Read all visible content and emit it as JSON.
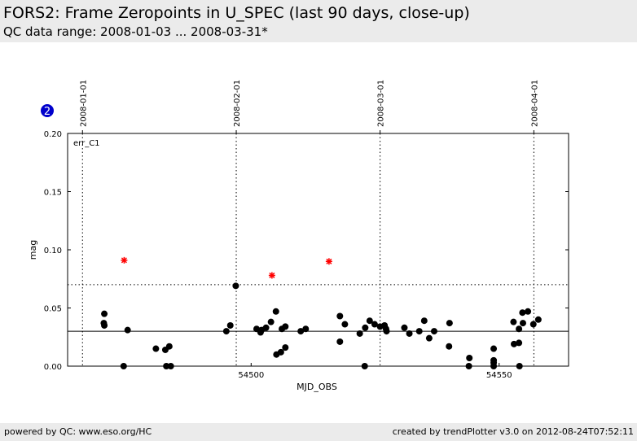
{
  "header": {
    "title": "FORS2: Frame Zeropoints in U_SPEC (last 90 days, close-up)",
    "subtitle": "QC data range: 2008-01-03 ... 2008-03-31*"
  },
  "badge": "2",
  "footer": {
    "left": "powered by QC: www.eso.org/HC",
    "right": "created by trendPlotter v3.0 on 2012-08-24T07:52:11"
  },
  "colors": {
    "points": "#000000",
    "outliers": "#ff0000",
    "badge": "#0000cc",
    "header_bg": "#ebebeb"
  },
  "chart_data": {
    "type": "scatter",
    "panel_label": "err_C1",
    "xlabel": "MJD_OBS",
    "ylabel": "mag",
    "xlim": [
      54463,
      54564
    ],
    "ylim": [
      0,
      0.2
    ],
    "x_ticks": [
      54500,
      54550
    ],
    "x_tick_labels": [
      "54500",
      "54550"
    ],
    "y_ticks": [
      0.0,
      0.05,
      0.1,
      0.15,
      0.2
    ],
    "y_tick_labels": [
      "0.00",
      "0.05",
      "0.10",
      "0.15",
      "0.20"
    ],
    "date_markers": [
      {
        "mjd": 54466,
        "label": "2008-01-01"
      },
      {
        "mjd": 54497,
        "label": "2008-02-01"
      },
      {
        "mjd": 54526,
        "label": "2008-03-01"
      },
      {
        "mjd": 54557,
        "label": "2008-04-01"
      }
    ],
    "reference_line": 0.03,
    "threshold_line": 0.07,
    "grid": false,
    "points": [
      [
        54470.4,
        0.045
      ],
      [
        54470.3,
        0.037
      ],
      [
        54470.4,
        0.035
      ],
      [
        54474.3,
        0.0
      ],
      [
        54475.1,
        0.031
      ],
      [
        54480.8,
        0.015
      ],
      [
        54482.7,
        0.014
      ],
      [
        54482.9,
        0.0
      ],
      [
        54483.5,
        0.017
      ],
      [
        54483.8,
        0.0
      ],
      [
        54495.0,
        0.03
      ],
      [
        54495.8,
        0.035
      ],
      [
        54496.9,
        0.069
      ],
      [
        54501.1,
        0.032
      ],
      [
        54501.9,
        0.029
      ],
      [
        54502.1,
        0.031
      ],
      [
        54503.0,
        0.033
      ],
      [
        54504.0,
        0.038
      ],
      [
        54505.0,
        0.047
      ],
      [
        54505.1,
        0.01
      ],
      [
        54506.0,
        0.012
      ],
      [
        54506.2,
        0.032
      ],
      [
        54506.9,
        0.034
      ],
      [
        54506.9,
        0.016
      ],
      [
        54510.0,
        0.03
      ],
      [
        54511.0,
        0.032
      ],
      [
        54517.9,
        0.043
      ],
      [
        54517.9,
        0.021
      ],
      [
        54518.9,
        0.036
      ],
      [
        54521.9,
        0.028
      ],
      [
        54522.9,
        0.0
      ],
      [
        54523.0,
        0.033
      ],
      [
        54523.9,
        0.039
      ],
      [
        54524.9,
        0.036
      ],
      [
        54526.0,
        0.034
      ],
      [
        54526.9,
        0.035
      ],
      [
        54527.2,
        0.032
      ],
      [
        54527.3,
        0.03
      ],
      [
        54530.9,
        0.033
      ],
      [
        54531.9,
        0.028
      ],
      [
        54533.9,
        0.03
      ],
      [
        54534.9,
        0.039
      ],
      [
        54535.9,
        0.024
      ],
      [
        54536.9,
        0.03
      ],
      [
        54540.0,
        0.037
      ],
      [
        54539.9,
        0.017
      ],
      [
        54544.0,
        0.007
      ],
      [
        54543.9,
        0.0
      ],
      [
        54548.9,
        0.015
      ],
      [
        54548.9,
        0.005
      ],
      [
        54548.9,
        0.003
      ],
      [
        54548.9,
        0.0
      ],
      [
        54552.9,
        0.038
      ],
      [
        54553.0,
        0.019
      ],
      [
        54554.0,
        0.032
      ],
      [
        54554.0,
        0.02
      ],
      [
        54554.1,
        0.0
      ],
      [
        54554.7,
        0.046
      ],
      [
        54554.8,
        0.037
      ],
      [
        54555.8,
        0.047
      ],
      [
        54556.9,
        0.036
      ],
      [
        54557.9,
        0.04
      ]
    ],
    "outliers": [
      [
        54474.4,
        0.091
      ],
      [
        54504.2,
        0.078
      ],
      [
        54515.7,
        0.09
      ]
    ]
  }
}
